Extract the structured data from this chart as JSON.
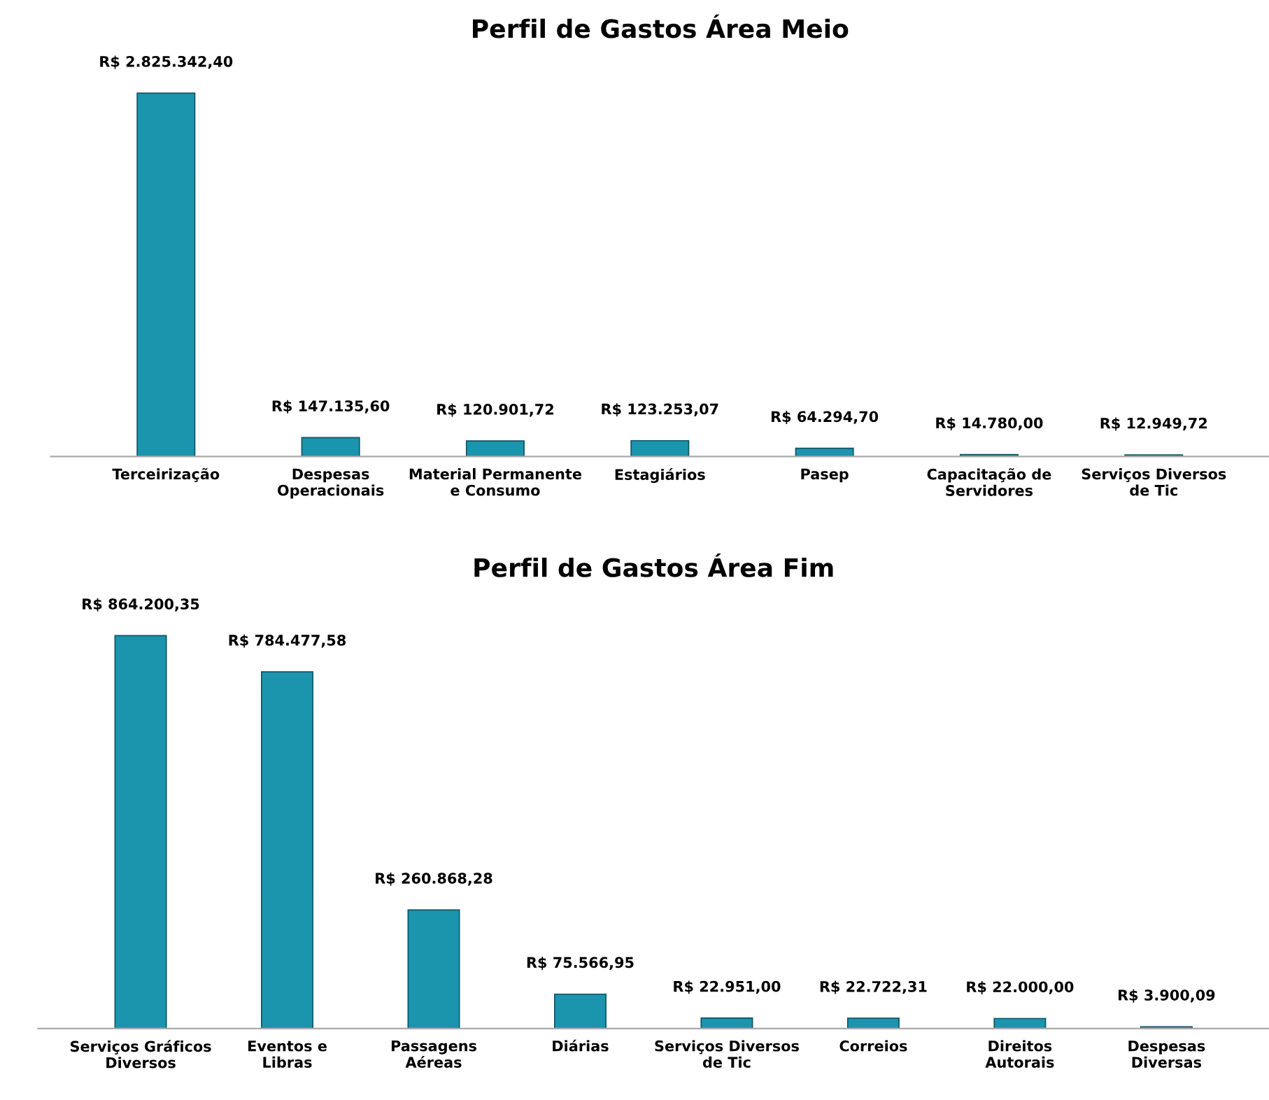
{
  "chart_data": [
    {
      "type": "bar",
      "title": "Perfil de Gastos Área Meio",
      "categories": [
        "Terceirização",
        "Despesas\nOperacionais",
        "Material Permanente\ne Consumo",
        "Estagiários",
        "Pasep",
        "Capacitação de\nServidores",
        "Serviços Diversos\nde Tic"
      ],
      "values": [
        2825342.4,
        147135.6,
        120901.72,
        123253.07,
        64294.7,
        14780.0,
        12949.72
      ],
      "value_labels": [
        "R$ 2.825.342,40",
        "R$ 147.135,60",
        "R$ 120.901,72",
        "R$ 123.253,07",
        "R$ 64.294,70",
        "R$ 14.780,00",
        "R$ 12.949,72"
      ],
      "color": "#1b94ad",
      "grid": false,
      "legend": false
    },
    {
      "type": "bar",
      "title": "Perfil de Gastos Área Fim",
      "categories": [
        "Serviços Gráficos\nDiversos",
        "Eventos e\nLibras",
        "Passagens\nAéreas",
        "Diárias",
        "Serviços Diversos\nde Tic",
        "Correios",
        "Direitos\nAutorais",
        "Despesas\nDiversas"
      ],
      "values": [
        864200.35,
        784477.58,
        260868.28,
        75566.95,
        22951.0,
        22722.31,
        22000.0,
        3900.09
      ],
      "value_labels": [
        "R$ 864.200,35",
        "R$ 784.477,58",
        "R$ 260.868,28",
        "R$ 75.566,95",
        "R$ 22.951,00",
        "R$ 22.722,31",
        "R$ 22.000,00",
        "R$ 3.900,09"
      ],
      "color": "#1b94ad",
      "grid": false,
      "legend": false
    }
  ]
}
